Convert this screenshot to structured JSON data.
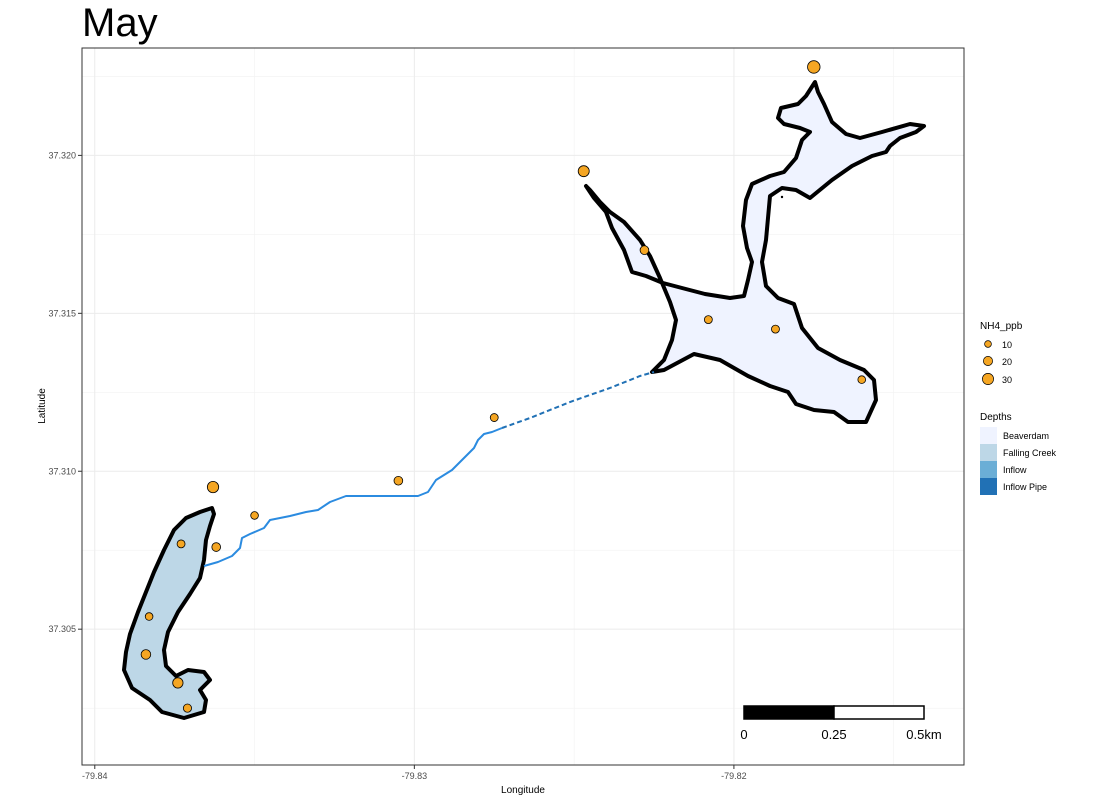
{
  "title": "May",
  "axes": {
    "x_title": "Longitude",
    "y_title": "Latitude",
    "x_ticks": [
      "-79.84",
      "-79.83",
      "-79.82"
    ],
    "y_ticks": [
      "37.305",
      "37.310",
      "37.315",
      "37.320"
    ],
    "x_tick_values": [
      -79.84,
      -79.83,
      -79.82
    ],
    "y_tick_values": [
      37.305,
      37.31,
      37.315,
      37.32
    ],
    "xlim": [
      -79.8404,
      -79.8128
    ],
    "ylim": [
      37.3007,
      37.3234
    ],
    "grid": true
  },
  "legend_size": {
    "title": "NH4_ppb",
    "entries": [
      {
        "label": "10",
        "value": 10
      },
      {
        "label": "20",
        "value": 20
      },
      {
        "label": "30",
        "value": 30
      }
    ]
  },
  "legend_fill": {
    "title": "Depths",
    "entries": [
      {
        "label": "Beaverdam",
        "color": "#eff3ff"
      },
      {
        "label": "Falling Creek",
        "color": "#bdd7e7"
      },
      {
        "label": "Inflow",
        "color": "#6baed6"
      },
      {
        "label": "Inflow Pipe",
        "color": "#2171b5"
      }
    ]
  },
  "scalebar": {
    "labels": [
      "0",
      "0.25",
      "0.5km"
    ]
  },
  "colors": {
    "point_fill": "#f5a623",
    "beaverdam_fill": "#eff3ff",
    "falling_creek_fill": "#bdd7e7",
    "inflow_line": "#2b8be0",
    "pipe_line": "#2171b5",
    "outline": "#000000"
  },
  "chart_data": {
    "type": "scatter",
    "title": "May",
    "xlabel": "Longitude",
    "ylabel": "Latitude",
    "points": [
      {
        "lon": -79.8175,
        "lat": 37.3228,
        "nh4": 32
      },
      {
        "lon": -79.8247,
        "lat": 37.3195,
        "nh4": 22
      },
      {
        "lon": -79.8228,
        "lat": 37.317,
        "nh4": 10
      },
      {
        "lon": -79.8208,
        "lat": 37.3148,
        "nh4": 7
      },
      {
        "lon": -79.8187,
        "lat": 37.3145,
        "nh4": 7
      },
      {
        "lon": -79.816,
        "lat": 37.3129,
        "nh4": 6
      },
      {
        "lon": -79.8275,
        "lat": 37.3117,
        "nh4": 7
      },
      {
        "lon": -79.8305,
        "lat": 37.3097,
        "nh4": 10
      },
      {
        "lon": -79.835,
        "lat": 37.3086,
        "nh4": 6
      },
      {
        "lon": -79.8363,
        "lat": 37.3095,
        "nh4": 24
      },
      {
        "lon": -79.8362,
        "lat": 37.3076,
        "nh4": 10
      },
      {
        "lon": -79.8373,
        "lat": 37.3077,
        "nh4": 7
      },
      {
        "lon": -79.8383,
        "lat": 37.3054,
        "nh4": 6
      },
      {
        "lon": -79.8384,
        "lat": 37.3042,
        "nh4": 14
      },
      {
        "lon": -79.8374,
        "lat": 37.3033,
        "nh4": 18
      },
      {
        "lon": -79.8371,
        "lat": 37.3025,
        "nh4": 8
      }
    ]
  }
}
